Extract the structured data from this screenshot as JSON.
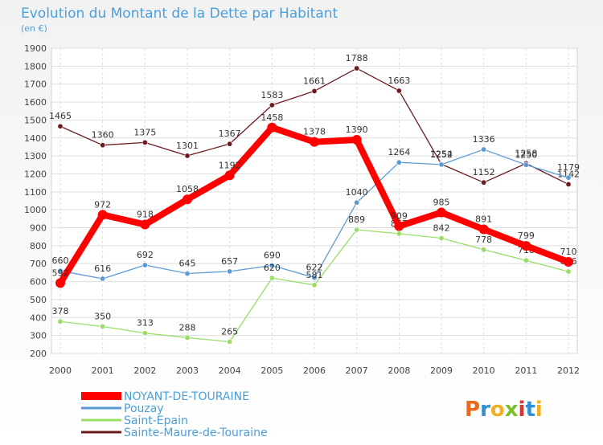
{
  "chart_data": {
    "type": "line",
    "title": "Evolution du Montant de la Dette par Habitant",
    "subtitle": "(en €)",
    "x": [
      "2000",
      "2001",
      "2002",
      "2003",
      "2004",
      "2005",
      "2006",
      "2007",
      "2008",
      "2009",
      "2010",
      "2011",
      "2012"
    ],
    "ylim": [
      200,
      1900
    ],
    "yticks": [
      200,
      300,
      400,
      500,
      600,
      700,
      800,
      900,
      1000,
      1100,
      1200,
      1300,
      1400,
      1500,
      1600,
      1700,
      1800,
      1900
    ],
    "grid": true,
    "legend_placement": "bottom-left",
    "series": [
      {
        "name": "Sainte-Maure-de-Touraine",
        "color": "#6e1b1f",
        "values": [
          1465,
          1360,
          1375,
          1301,
          1367,
          1583,
          1661,
          1788,
          1663,
          1254,
          1152,
          1258,
          1142
        ],
        "labels": [
          "1465",
          "1360",
          "1375",
          "1301",
          "1367",
          "1583",
          "1661",
          "1788",
          "1663",
          "1254",
          "1152",
          "1258",
          "1142"
        ]
      },
      {
        "name": "Pouzay",
        "color": "#5b9bd5",
        "values": [
          660,
          616,
          692,
          645,
          657,
          690,
          622,
          1040,
          1264,
          1252,
          1336,
          1250,
          1179
        ],
        "labels": [
          "660",
          "616",
          "692",
          "645",
          "657",
          "690",
          "622",
          "1040",
          "1264",
          "1252",
          "1336",
          "1250",
          "1179"
        ]
      },
      {
        "name": "Saint-Epain",
        "color": "#99dd66",
        "values": [
          378,
          350,
          313,
          288,
          265,
          620,
          581,
          889,
          867,
          842,
          778,
          718,
          656
        ],
        "labels": [
          "378",
          "350",
          "313",
          "288",
          "265",
          "620",
          "581",
          "889",
          "867",
          "842",
          "778",
          "718",
          "656"
        ]
      },
      {
        "name": "NOYANT-DE-TOURAINE",
        "color": "#ff0000",
        "values": [
          592,
          972,
          918,
          1058,
          1192,
          1458,
          1378,
          1390,
          909,
          985,
          891,
          799,
          710
        ],
        "labels": [
          "592",
          "972",
          "918",
          "1058",
          "1192",
          "1458",
          "1378",
          "1390",
          "909",
          "985",
          "891",
          "799",
          "710"
        ]
      }
    ],
    "legend": [
      {
        "name": "NOYANT-DE-TOURAINE",
        "color": "#ff0000"
      },
      {
        "name": "Pouzay",
        "color": "#5b9bd5"
      },
      {
        "name": "Saint-Epain",
        "color": "#99dd66"
      },
      {
        "name": "Sainte-Maure-de-Touraine",
        "color": "#6e1b1f"
      }
    ]
  },
  "logo": {
    "text": "Proxiti"
  }
}
